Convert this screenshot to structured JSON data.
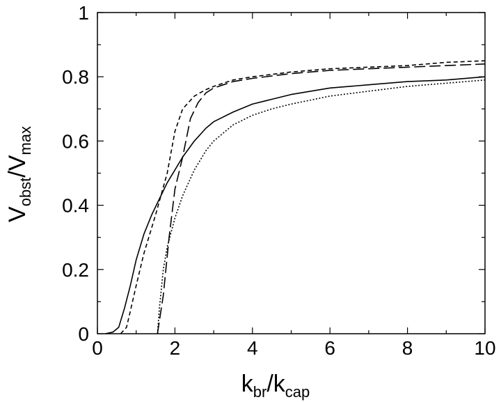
{
  "chart_data": {
    "type": "line",
    "title": "",
    "xlabel": {
      "base1": "k",
      "sub1": "br",
      "sep": "/",
      "base2": "k",
      "sub2": "cap"
    },
    "ylabel": {
      "base1": "V",
      "sub1": "obst",
      "sep": "/",
      "base2": "V",
      "sub2": "max"
    },
    "xlim": [
      0,
      10
    ],
    "ylim": [
      0,
      1
    ],
    "xticks": [
      0,
      2,
      4,
      6,
      8,
      10
    ],
    "xtick_labels": [
      "0",
      "2",
      "4",
      "6",
      "8",
      "10"
    ],
    "yticks": [
      0,
      0.2,
      0.4,
      0.6,
      0.8,
      1
    ],
    "ytick_labels": [
      "0",
      "0.2",
      "0.4",
      "0.6",
      "0.8",
      "1"
    ],
    "grid": false,
    "legend": "none",
    "series": [
      {
        "style": "solid",
        "x": [
          0.2,
          0.4,
          0.55,
          0.7,
          0.85,
          1.0,
          1.2,
          1.4,
          1.6,
          1.8,
          2.0,
          2.2,
          2.5,
          2.8,
          3.0,
          3.5,
          4.0,
          4.5,
          5.0,
          5.5,
          6.0,
          7.0,
          8.0,
          9.0,
          10.0
        ],
        "y": [
          0.0,
          0.005,
          0.02,
          0.08,
          0.15,
          0.23,
          0.31,
          0.37,
          0.42,
          0.47,
          0.51,
          0.55,
          0.6,
          0.64,
          0.66,
          0.69,
          0.715,
          0.73,
          0.745,
          0.755,
          0.765,
          0.775,
          0.785,
          0.79,
          0.8
        ]
      },
      {
        "style": "short-dash",
        "x": [
          0.6,
          0.75,
          0.85,
          1.0,
          1.2,
          1.5,
          1.8,
          2.0,
          2.2,
          2.5,
          2.8,
          3.0,
          3.5,
          4.0,
          5.0,
          6.0,
          7.0,
          8.0,
          9.0,
          10.0
        ],
        "y": [
          0.0,
          0.02,
          0.07,
          0.15,
          0.25,
          0.37,
          0.5,
          0.63,
          0.7,
          0.74,
          0.76,
          0.77,
          0.79,
          0.8,
          0.815,
          0.825,
          0.83,
          0.835,
          0.845,
          0.85
        ]
      },
      {
        "style": "long-dash",
        "x": [
          1.55,
          1.7,
          1.85,
          2.0,
          2.2,
          2.4,
          2.6,
          2.8,
          3.0,
          3.5,
          4.0,
          5.0,
          6.0,
          7.0,
          8.0,
          9.0,
          10.0
        ],
        "y": [
          0.0,
          0.12,
          0.3,
          0.45,
          0.55,
          0.67,
          0.72,
          0.75,
          0.765,
          0.785,
          0.795,
          0.81,
          0.82,
          0.825,
          0.83,
          0.835,
          0.84
        ]
      },
      {
        "style": "dotted",
        "x": [
          1.55,
          1.6,
          1.7,
          1.8,
          2.0,
          2.2,
          2.5,
          2.8,
          3.0,
          3.5,
          4.0,
          4.5,
          5.0,
          6.0,
          7.0,
          8.0,
          9.0,
          10.0
        ],
        "y": [
          0.0,
          0.08,
          0.2,
          0.27,
          0.36,
          0.43,
          0.51,
          0.57,
          0.6,
          0.65,
          0.68,
          0.7,
          0.715,
          0.74,
          0.755,
          0.77,
          0.78,
          0.79
        ]
      }
    ]
  }
}
